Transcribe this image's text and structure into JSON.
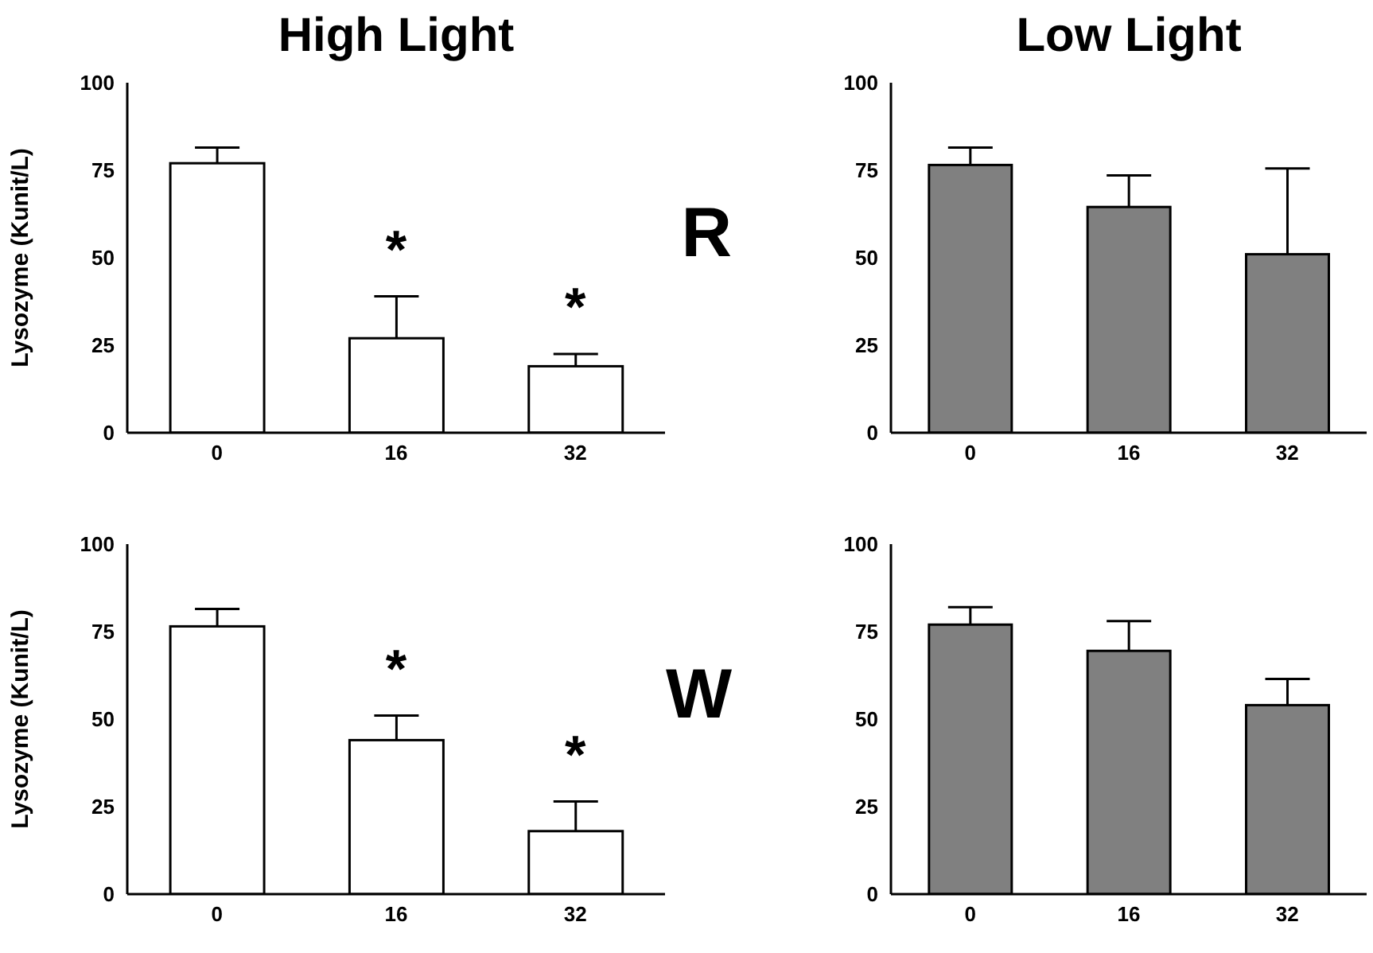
{
  "chart_data": [
    {
      "type": "bar",
      "title": "High Light",
      "ylabel": "Lysozyme (Kunit/L)",
      "categories": [
        "0",
        "16",
        "32"
      ],
      "values": [
        77,
        27,
        19
      ],
      "color": "#ffffff",
      "errors": [
        [
          77,
          81.5
        ],
        [
          27,
          39
        ],
        [
          19,
          22.5
        ]
      ],
      "ylim": [
        0,
        100
      ],
      "yticks": [
        0,
        25,
        50,
        75,
        100
      ],
      "annotations": [
        "*",
        "*",
        "R"
      ]
    },
    {
      "type": "bar",
      "title": "Low Light",
      "categories": [
        "0",
        "16",
        "32"
      ],
      "values": [
        76.5,
        64.5,
        51
      ],
      "color": "#808080",
      "errors": [
        [
          76.5,
          81.5
        ],
        [
          64.5,
          73.5
        ],
        [
          51,
          75.5
        ]
      ],
      "ylim": [
        0,
        100
      ],
      "yticks": [
        0,
        25,
        50,
        75,
        100
      ]
    },
    {
      "type": "bar",
      "ylabel": "Lysozyme (Kunit/L)",
      "categories": [
        "0",
        "16",
        "32"
      ],
      "values": [
        76.5,
        44,
        18
      ],
      "color": "#ffffff",
      "errors": [
        [
          76.5,
          81.5
        ],
        [
          44,
          51
        ],
        [
          18,
          26.5
        ]
      ],
      "ylim": [
        0,
        100
      ],
      "yticks": [
        0,
        25,
        50,
        75,
        100
      ],
      "annotations": [
        "*",
        "*",
        "W"
      ]
    },
    {
      "type": "bar",
      "categories": [
        "0",
        "16",
        "32"
      ],
      "values": [
        77,
        69.5,
        54
      ],
      "color": "#808080",
      "errors": [
        [
          77,
          82
        ],
        [
          69.5,
          78
        ],
        [
          54,
          61.5
        ]
      ],
      "ylim": [
        0,
        100
      ],
      "yticks": [
        0,
        25,
        50,
        75,
        100
      ]
    }
  ]
}
